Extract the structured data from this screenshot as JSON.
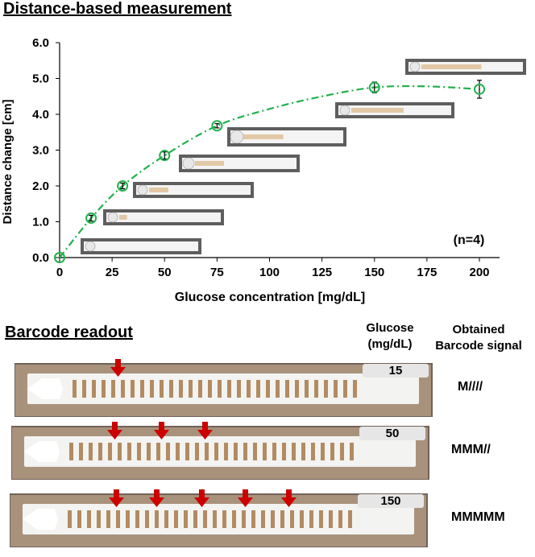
{
  "title": "Distance-based measurement",
  "barcode_heading": "Barcode readout",
  "columns": {
    "glucose_line1": "Glucose",
    "glucose_line2": "(mg/dL)",
    "signal_line1": "Obtained",
    "signal_line2": "Barcode signal"
  },
  "chart_data": {
    "type": "scatter",
    "xlabel": "Glucose concentration [mg/dL]",
    "ylabel": "Distance change [cm]",
    "xlim": [
      0,
      200
    ],
    "ylim": [
      0,
      6
    ],
    "x_ticks": [
      "0",
      "25",
      "50",
      "75",
      "100",
      "125",
      "150",
      "175",
      "200"
    ],
    "y_ticks": [
      "0.0",
      "1.0",
      "2.0",
      "3.0",
      "4.0",
      "5.0",
      "6.0"
    ],
    "annotation": "(n=4)",
    "grid": false,
    "points": [
      {
        "x": 0,
        "y": 0.0,
        "err": 0.0
      },
      {
        "x": 15,
        "y": 1.1,
        "err": 0.08
      },
      {
        "x": 30,
        "y": 2.0,
        "err": 0.08
      },
      {
        "x": 50,
        "y": 2.85,
        "err": 0.1
      },
      {
        "x": 75,
        "y": 3.68,
        "err": 0.06
      },
      {
        "x": 150,
        "y": 4.75,
        "err": 0.15
      },
      {
        "x": 200,
        "y": 4.7,
        "err": 0.25
      }
    ],
    "marker_color": "#22b14c",
    "trendline": {
      "style": "dash-dot",
      "color": "#22b14c",
      "x": [
        0,
        15,
        30,
        50,
        75,
        100,
        125,
        150,
        175,
        200
      ],
      "y": [
        0.0,
        1.1,
        2.0,
        2.85,
        3.68,
        4.15,
        4.5,
        4.75,
        4.78,
        4.7
      ]
    }
  },
  "barcode_rows": [
    {
      "glucose": "15",
      "signal": "M////",
      "arrows": 1
    },
    {
      "glucose": "50",
      "signal": "MMM//",
      "arrows": 3
    },
    {
      "glucose": "150",
      "signal": "MMMMM",
      "arrows": 5
    }
  ]
}
